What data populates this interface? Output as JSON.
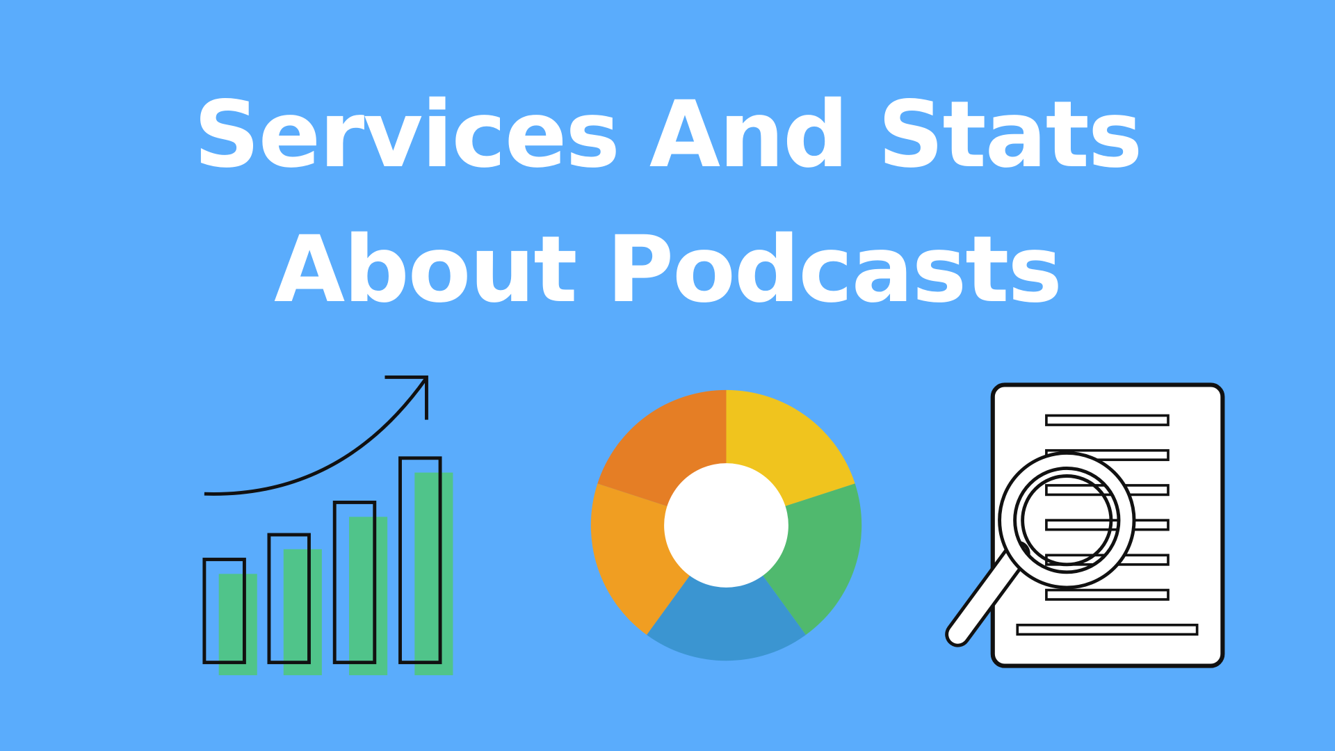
{
  "title": {
    "line1": "Services And Stats",
    "line2": "About Podcasts"
  },
  "colors": {
    "background": "#5aacfc",
    "bar_fill": "#50c48a",
    "outline": "#111111",
    "donut": [
      "#f0c41e",
      "#50b96e",
      "#3b95d1",
      "#f09e22",
      "#e57e25"
    ],
    "donut_center": "#ffffff"
  },
  "icons": [
    "bar-chart-growth-icon",
    "donut-chart-icon",
    "document-magnifier-icon"
  ]
}
